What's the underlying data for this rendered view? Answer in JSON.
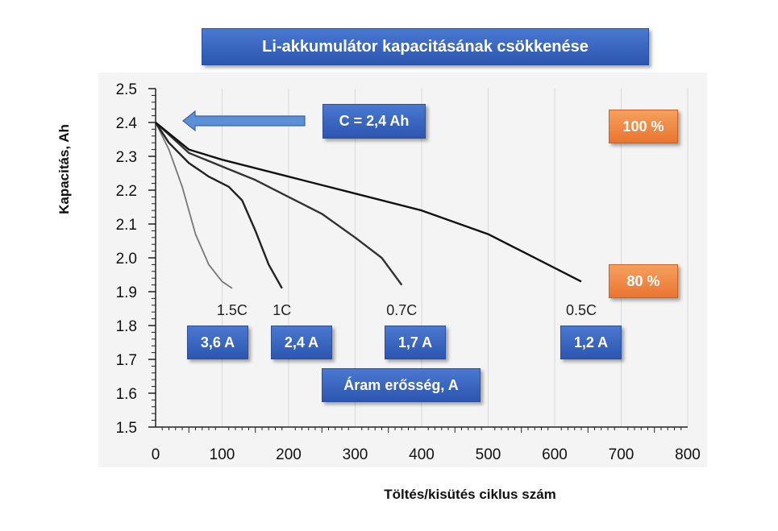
{
  "chart_data": {
    "type": "line",
    "title": "Li-akkumulátor kapacitásának csökkenése",
    "xlabel": "Töltés/kisütés ciklus szám",
    "ylabel": "Kapacitás, Ah",
    "xlim": [
      0,
      800
    ],
    "ylim": [
      1.5,
      2.5
    ],
    "x_ticks": [
      "0",
      "100",
      "200",
      "300",
      "400",
      "500",
      "600",
      "700",
      "800"
    ],
    "y_ticks": [
      "1.5",
      "1.6",
      "1.7",
      "1.8",
      "1.9",
      "2.0",
      "2.1",
      "2.2",
      "2.3",
      "2.4",
      "2.5"
    ],
    "grid": "vertical",
    "series": [
      {
        "name": "1.5C",
        "current": "3,6 A",
        "color": "#777777",
        "x": [
          0,
          20,
          40,
          60,
          80,
          100,
          115
        ],
        "y": [
          2.4,
          2.32,
          2.21,
          2.07,
          1.98,
          1.93,
          1.91
        ]
      },
      {
        "name": "1C",
        "current": "2,4 A",
        "color": "#222222",
        "x": [
          0,
          20,
          50,
          80,
          110,
          130,
          150,
          170,
          190
        ],
        "y": [
          2.4,
          2.34,
          2.28,
          2.24,
          2.21,
          2.17,
          2.08,
          1.98,
          1.91
        ]
      },
      {
        "name": "0.7C",
        "current": "1,7 A",
        "color": "#333333",
        "x": [
          0,
          50,
          100,
          150,
          200,
          250,
          300,
          340,
          370
        ],
        "y": [
          2.4,
          2.31,
          2.27,
          2.23,
          2.18,
          2.13,
          2.06,
          2.0,
          1.92
        ]
      },
      {
        "name": "0.5C",
        "current": "1,2 A",
        "color": "#111111",
        "x": [
          0,
          50,
          100,
          200,
          300,
          400,
          500,
          550,
          600,
          640
        ],
        "y": [
          2.4,
          2.32,
          2.29,
          2.24,
          2.19,
          2.14,
          2.07,
          2.02,
          1.97,
          1.93
        ]
      }
    ],
    "annotations": {
      "capacity": "C = 2,4 Ah",
      "level_100": "100 %",
      "level_80": "80 %",
      "current_title": "Áram erősség, A"
    }
  }
}
